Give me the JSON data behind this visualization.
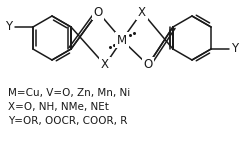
{
  "bg_color": "#ffffff",
  "text_lines": [
    "M=Cu, V=O, Zn, Mn, Ni",
    "X=O, NH, NMe, NEt",
    "Y=OR, OOCR, COOR, R"
  ],
  "text_fontsize": 7.5,
  "struct_color": "#1a1a1a",
  "line_width": 1.1,
  "fig_width": 2.44,
  "fig_height": 1.42,
  "dpi": 100
}
